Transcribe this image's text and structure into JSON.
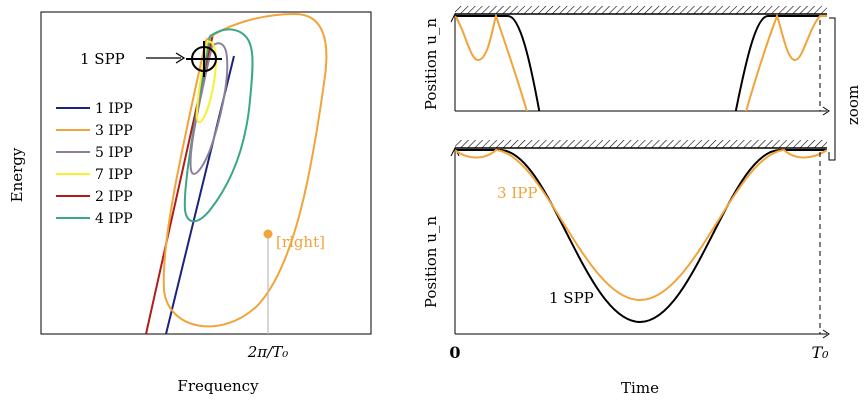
{
  "colors": {
    "black": "#000000",
    "navy": "#1a237e",
    "orange": "#f2a33a",
    "purple": "#8e7f99",
    "yellow": "#f7f030",
    "red": "#b01c18",
    "teal": "#3aa787",
    "gray": "#bbbbbb"
  },
  "chart_data": [
    {
      "type": "line",
      "panel": "left",
      "xlabel": "Frequency",
      "ylabel": "Energy",
      "xtick_labels": [
        "2π/T₀"
      ],
      "annotations": {
        "spp_label": "1 SPP",
        "right_label": "[right]"
      },
      "legend_position": "center-left",
      "series": [
        {
          "name": "1 IPP",
          "color": "#1a237e"
        },
        {
          "name": "3 IPP",
          "color": "#f2a33a"
        },
        {
          "name": "5 IPP",
          "color": "#8e7f99"
        },
        {
          "name": "7 IPP",
          "color": "#f7f030"
        },
        {
          "name": "2 IPP",
          "color": "#b01c18"
        },
        {
          "name": "4 IPP",
          "color": "#3aa787"
        }
      ]
    },
    {
      "type": "line",
      "panel": "right",
      "xlabel": "Time",
      "ylabel": "Position u_n",
      "xtick_labels": [
        "0",
        "T₀"
      ],
      "zoom_label": "zoom",
      "series_labels": {
        "ipp3": "3 IPP",
        "spp1": "1 SPP"
      },
      "series": [
        {
          "name": "1 SPP",
          "color": "#000000"
        },
        {
          "name": "3 IPP",
          "color": "#f2a33a"
        }
      ]
    }
  ]
}
